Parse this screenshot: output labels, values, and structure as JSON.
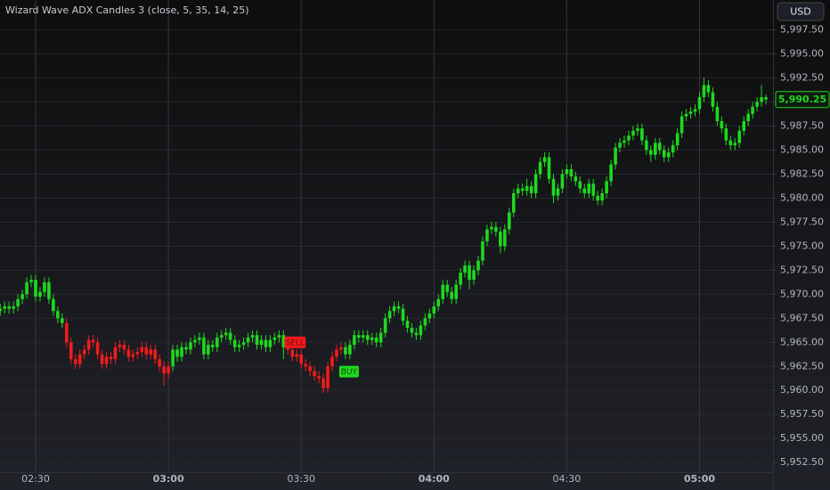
{
  "chart_data": {
    "type": "candlestick",
    "title": "Wizard Wave ADX Candles 3 (close, 5, 35, 14, 25)",
    "currency": "USD",
    "x": [
      "02:22",
      "02:23",
      "02:24",
      "02:25",
      "02:26",
      "02:27",
      "02:28",
      "02:29",
      "02:30",
      "02:31",
      "02:32",
      "02:33",
      "02:34",
      "02:35",
      "02:36",
      "02:37",
      "02:38",
      "02:39",
      "02:40",
      "02:41",
      "02:42",
      "02:43",
      "02:44",
      "02:45",
      "02:46",
      "02:47",
      "02:48",
      "02:49",
      "02:50",
      "02:51",
      "02:52",
      "02:53",
      "02:54",
      "02:55",
      "02:56",
      "02:57",
      "02:58",
      "02:59",
      "03:00",
      "03:01",
      "03:02",
      "03:03",
      "03:04",
      "03:05",
      "03:06",
      "03:07",
      "03:08",
      "03:09",
      "03:10",
      "03:11",
      "03:12",
      "03:13",
      "03:14",
      "03:15",
      "03:16",
      "03:17",
      "03:18",
      "03:19",
      "03:20",
      "03:21",
      "03:22",
      "03:23",
      "03:24",
      "03:25",
      "03:26",
      "03:27",
      "03:28",
      "03:29",
      "03:30",
      "03:31",
      "03:32",
      "03:33",
      "03:34",
      "03:35",
      "03:36",
      "03:37",
      "03:38",
      "03:39",
      "03:40",
      "03:41",
      "03:42",
      "03:43",
      "03:44",
      "03:45",
      "03:46",
      "03:47",
      "03:48",
      "03:49",
      "03:50",
      "03:51",
      "03:52",
      "03:53",
      "03:54",
      "03:55",
      "03:56",
      "03:57",
      "03:58",
      "03:59",
      "04:00",
      "04:01",
      "04:02",
      "04:03",
      "04:04",
      "04:05",
      "04:06",
      "04:07",
      "04:08",
      "04:09",
      "04:10",
      "04:11",
      "04:12",
      "04:13",
      "04:14",
      "04:15",
      "04:16",
      "04:17",
      "04:18",
      "04:19",
      "04:20",
      "04:21",
      "04:22",
      "04:23",
      "04:24",
      "04:25",
      "04:26",
      "04:27",
      "04:28",
      "04:29",
      "04:30",
      "04:31",
      "04:32",
      "04:33",
      "04:34",
      "04:35",
      "04:36",
      "04:37",
      "04:38",
      "04:39",
      "04:40",
      "04:41",
      "04:42",
      "04:43",
      "04:44",
      "04:45",
      "04:46",
      "04:47",
      "04:48",
      "04:49",
      "04:50",
      "04:51",
      "04:52",
      "04:53",
      "04:54",
      "04:55",
      "04:56",
      "04:57",
      "04:58",
      "04:59",
      "05:00",
      "05:01",
      "05:02",
      "05:03",
      "05:04",
      "05:05",
      "05:06",
      "05:07",
      "05:08",
      "05:09",
      "05:10",
      "05:11",
      "05:12",
      "05:13",
      "05:14",
      "05:15"
    ],
    "open": [
      5968.25,
      5968.5,
      5968.75,
      5968.5,
      5968.75,
      5969.5,
      5970,
      5971.25,
      5971.5,
      5969.75,
      5970.25,
      5971.25,
      5969.5,
      5968.25,
      5967.5,
      5967,
      5965,
      5963.25,
      5962.75,
      5963.75,
      5964.25,
      5965.25,
      5965,
      5963.75,
      5962.75,
      5963.5,
      5963.25,
      5964.5,
      5964.75,
      5964.25,
      5963.5,
      5963.75,
      5964,
      5964.5,
      5963.75,
      5964.25,
      5963.25,
      5962.5,
      5961.75,
      5962.5,
      5964.25,
      5963.5,
      5964.5,
      5964.25,
      5965,
      5965.25,
      5965.5,
      5963.75,
      5964.75,
      5964.5,
      5965.5,
      5965.75,
      5966,
      5965.25,
      5964.5,
      5964.75,
      5965,
      5965.5,
      5965.75,
      5964.75,
      5965.25,
      5964.5,
      5965.25,
      5965.5,
      5965.75,
      5964.5,
      5964.25,
      5963.5,
      5963.75,
      5962.75,
      5962.5,
      5962,
      5961.5,
      5961.25,
      5960.25,
      5962.5,
      5963.5,
      5964.25,
      5964.5,
      5963.75,
      5964.75,
      5965.75,
      5965.5,
      5965.75,
      5965.25,
      5965.5,
      5965,
      5966,
      5967.5,
      5968.25,
      5968.75,
      5968.5,
      5967.25,
      5966.5,
      5966,
      5965.75,
      5966.75,
      5967.5,
      5968,
      5968.75,
      5969.5,
      5971,
      5970.25,
      5969.5,
      5971,
      5972.25,
      5973,
      5971.5,
      5972.5,
      5973.5,
      5975.5,
      5976.75,
      5977,
      5976.5,
      5975,
      5976.75,
      5978.5,
      5980.5,
      5981,
      5980.75,
      5981.25,
      5980.5,
      5982.5,
      5983.75,
      5984.25,
      5982,
      5980.25,
      5981,
      5982.5,
      5983,
      5982.25,
      5981.75,
      5981,
      5980.5,
      5981.5,
      5980.25,
      5979.75,
      5980.5,
      5981.75,
      5983.5,
      5985.25,
      5985.75,
      5986,
      5986.5,
      5987,
      5987.25,
      5986,
      5985,
      5984.5,
      5985.75,
      5985,
      5984.25,
      5984.75,
      5985.5,
      5986.75,
      5988.5,
      5988.75,
      5989,
      5989.25,
      5990.5,
      5991.75,
      5991,
      5989.5,
      5988,
      5987.25,
      5986,
      5985.5,
      5985.75,
      5987,
      5988,
      5988.75,
      5989.5,
      5990,
      5990.5
    ],
    "high": [
      5969,
      5969.25,
      5969.25,
      5969.25,
      5970,
      5970.5,
      5971.75,
      5972,
      5972,
      5970.75,
      5971.75,
      5971.75,
      5970,
      5968.75,
      5968,
      5967.5,
      5965.5,
      5963.75,
      5964.25,
      5964.75,
      5965.75,
      5965.75,
      5965.5,
      5964.25,
      5964,
      5964,
      5965,
      5965.25,
      5965.25,
      5964.75,
      5964.25,
      5964.5,
      5965,
      5965,
      5964.75,
      5964.75,
      5963.75,
      5963,
      5963,
      5964.75,
      5964.75,
      5965,
      5965,
      5965.5,
      5965.75,
      5966,
      5966,
      5965.25,
      5965.25,
      5966,
      5966.25,
      5966.5,
      5966.5,
      5965.75,
      5965.25,
      5965.5,
      5966,
      5966.25,
      5966.25,
      5965.75,
      5965.75,
      5965.75,
      5966,
      5966.25,
      5966.25,
      5965,
      5964.75,
      5964.25,
      5964.25,
      5963.25,
      5963,
      5962.5,
      5962,
      5961.75,
      5963,
      5964,
      5964.75,
      5965,
      5965,
      5965.25,
      5966.25,
      5966.25,
      5966.25,
      5966.25,
      5966,
      5966,
      5966.5,
      5968,
      5968.75,
      5969.25,
      5969.25,
      5969,
      5967.75,
      5967,
      5966.5,
      5967.25,
      5968,
      5968.5,
      5969.25,
      5970,
      5971.5,
      5971.5,
      5970.75,
      5971.5,
      5972.75,
      5973.5,
      5973.5,
      5973,
      5974,
      5976,
      5977.25,
      5977.5,
      5977.5,
      5977,
      5977.25,
      5979,
      5981,
      5981.5,
      5981.5,
      5982,
      5981.75,
      5983,
      5984.25,
      5984.75,
      5984.75,
      5982.5,
      5981.5,
      5983,
      5983.5,
      5983.5,
      5982.75,
      5982.25,
      5981.5,
      5982,
      5982,
      5980.75,
      5981,
      5982.25,
      5984,
      5985.75,
      5986.25,
      5986.5,
      5987,
      5987.5,
      5987.75,
      5987.75,
      5986.5,
      5985.5,
      5986.25,
      5986.25,
      5985.5,
      5985.25,
      5986,
      5987.25,
      5989,
      5989.25,
      5989.5,
      5989.75,
      5991,
      5992.5,
      5992.25,
      5991.5,
      5990,
      5988.5,
      5987.75,
      5986.5,
      5986.25,
      5987.5,
      5988.5,
      5989.25,
      5990,
      5990.5,
      5991.75,
      5990.75
    ],
    "low": [
      5967.75,
      5968,
      5968,
      5968,
      5968.25,
      5969,
      5969.5,
      5970.75,
      5969.25,
      5969.25,
      5969.75,
      5969,
      5967.75,
      5967,
      5966.5,
      5964.5,
      5962.75,
      5962.25,
      5962.25,
      5963.25,
      5963.75,
      5964.5,
      5963.25,
      5962.25,
      5962.25,
      5962.75,
      5962.75,
      5964,
      5963.75,
      5963,
      5963,
      5963.25,
      5963.5,
      5963.25,
      5963.25,
      5962.75,
      5962,
      5960.5,
      5961.25,
      5962,
      5963,
      5963,
      5963.75,
      5963.75,
      5964.5,
      5964.75,
      5963.25,
      5963.25,
      5964,
      5964,
      5965,
      5965.25,
      5964.75,
      5964,
      5964,
      5964.25,
      5964.5,
      5965,
      5964.25,
      5964.25,
      5964,
      5964,
      5964.75,
      5965,
      5963.25,
      5963.75,
      5963,
      5963,
      5962.25,
      5962,
      5961.5,
      5961,
      5960.75,
      5959.75,
      5959.75,
      5962,
      5963,
      5963.75,
      5963.25,
      5963.25,
      5964.25,
      5965,
      5965,
      5964.75,
      5964.75,
      5964.5,
      5964.5,
      5965.5,
      5967,
      5967.75,
      5968,
      5966.75,
      5966,
      5965.5,
      5965.25,
      5965.25,
      5966.25,
      5967,
      5967.5,
      5968.25,
      5969,
      5969.75,
      5969,
      5969,
      5970.5,
      5971.75,
      5970.5,
      5971,
      5972,
      5973,
      5975,
      5976.25,
      5976,
      5974.25,
      5974.5,
      5976.25,
      5978,
      5980,
      5980.25,
      5980.25,
      5980,
      5980,
      5982,
      5983.25,
      5981.5,
      5979.5,
      5979.75,
      5980.5,
      5982,
      5981.75,
      5981.25,
      5980.5,
      5980,
      5980,
      5979.75,
      5979.25,
      5979.25,
      5980,
      5981.25,
      5983,
      5984.75,
      5985.25,
      5985.5,
      5986,
      5986.5,
      5985.5,
      5984.5,
      5983.75,
      5984,
      5984.5,
      5983.75,
      5983.75,
      5984.25,
      5985,
      5986.25,
      5988,
      5988.25,
      5988.5,
      5988.75,
      5990,
      5990.5,
      5989,
      5987.5,
      5986.75,
      5985.5,
      5985,
      5985,
      5985.25,
      5986.5,
      5987.5,
      5988.25,
      5989,
      5989.5,
      5989.75
    ],
    "close": [
      5968.5,
      5968.75,
      5968.5,
      5968.75,
      5969.5,
      5970,
      5971.25,
      5971.5,
      5969.75,
      5970.25,
      5971.25,
      5969.5,
      5968.25,
      5967.5,
      5967,
      5965,
      5963.25,
      5962.75,
      5963.75,
      5964.25,
      5965.25,
      5965,
      5963.75,
      5962.75,
      5963.5,
      5963.25,
      5964.5,
      5964.75,
      5964.25,
      5963.5,
      5963.75,
      5964,
      5964.5,
      5963.75,
      5964.25,
      5963.25,
      5962.5,
      5961.75,
      5962.5,
      5964.25,
      5963.5,
      5964.5,
      5964.25,
      5965,
      5965.25,
      5965.5,
      5963.75,
      5964.75,
      5964.5,
      5965.5,
      5965.75,
      5966,
      5965.25,
      5964.5,
      5964.75,
      5965,
      5965.5,
      5965.75,
      5964.75,
      5965.25,
      5964.5,
      5965.25,
      5965.5,
      5965.75,
      5964.5,
      5964.25,
      5963.5,
      5963.75,
      5962.75,
      5962.5,
      5962,
      5961.5,
      5961.25,
      5960.25,
      5962.5,
      5963.5,
      5964.25,
      5964.5,
      5963.75,
      5964.75,
      5965.75,
      5965.5,
      5965.75,
      5965.25,
      5965.5,
      5965,
      5966,
      5967.5,
      5968.25,
      5968.75,
      5968.5,
      5967.25,
      5966.5,
      5966,
      5965.75,
      5966.75,
      5967.5,
      5968,
      5968.75,
      5969.5,
      5971,
      5970.25,
      5969.5,
      5971,
      5972.25,
      5973,
      5971.5,
      5972.5,
      5973.5,
      5975.5,
      5976.75,
      5977,
      5976.5,
      5975,
      5976.75,
      5978.5,
      5980.5,
      5981,
      5980.75,
      5981.25,
      5980.5,
      5982.5,
      5983.75,
      5984.25,
      5982,
      5980.25,
      5981,
      5982.5,
      5983,
      5982.25,
      5981.75,
      5981,
      5980.5,
      5981.5,
      5980.25,
      5979.75,
      5980.5,
      5981.75,
      5983.5,
      5985.25,
      5985.75,
      5986,
      5986.5,
      5987,
      5987.25,
      5986,
      5985,
      5984.5,
      5985.75,
      5985,
      5984.25,
      5984.75,
      5985.5,
      5986.75,
      5988.5,
      5988.75,
      5989,
      5989.25,
      5990.5,
      5991.75,
      5991,
      5989.5,
      5988,
      5987.25,
      5986,
      5985.5,
      5985.75,
      5987,
      5988,
      5988.75,
      5989.5,
      5990,
      5990.5,
      5990.25
    ],
    "candle_colors": [
      "#1fd81f",
      "#1fd81f",
      "#1fd81f",
      "#1fd81f",
      "#1fd81f",
      "#1fd81f",
      "#1fd81f",
      "#1fd81f",
      "#1fd81f",
      "#1fd81f",
      "#1fd81f",
      "#1fd81f",
      "#1fd81f",
      "#1fd81f",
      "#1fd81f",
      "#f21b1b",
      "#f21b1b",
      "#f21b1b",
      "#f21b1b",
      "#f21b1b",
      "#f21b1b",
      "#f21b1b",
      "#f21b1b",
      "#f21b1b",
      "#f21b1b",
      "#f21b1b",
      "#f21b1b",
      "#f21b1b",
      "#f21b1b",
      "#f21b1b",
      "#f21b1b",
      "#f21b1b",
      "#f21b1b",
      "#f21b1b",
      "#f21b1b",
      "#f21b1b",
      "#f21b1b",
      "#f21b1b",
      "#f21b1b",
      "#1fd81f",
      "#1fd81f",
      "#1fd81f",
      "#1fd81f",
      "#1fd81f",
      "#1fd81f",
      "#1fd81f",
      "#1fd81f",
      "#1fd81f",
      "#1fd81f",
      "#1fd81f",
      "#1fd81f",
      "#1fd81f",
      "#1fd81f",
      "#1fd81f",
      "#1fd81f",
      "#1fd81f",
      "#1fd81f",
      "#1fd81f",
      "#1fd81f",
      "#1fd81f",
      "#1fd81f",
      "#1fd81f",
      "#1fd81f",
      "#1fd81f",
      "#1fd81f",
      "#f21b1b",
      "#f21b1b",
      "#f21b1b",
      "#f21b1b",
      "#f21b1b",
      "#f21b1b",
      "#f21b1b",
      "#f21b1b",
      "#f21b1b",
      "#f21b1b",
      "#f21b1b",
      "#f21b1b",
      "#f21b1b",
      "#1fd81f",
      "#1fd81f",
      "#1fd81f",
      "#1fd81f",
      "#1fd81f",
      "#1fd81f",
      "#1fd81f",
      "#1fd81f",
      "#1fd81f",
      "#1fd81f",
      "#1fd81f",
      "#1fd81f",
      "#1fd81f",
      "#1fd81f",
      "#1fd81f",
      "#1fd81f",
      "#1fd81f",
      "#1fd81f",
      "#1fd81f",
      "#1fd81f",
      "#1fd81f",
      "#1fd81f",
      "#1fd81f",
      "#1fd81f",
      "#1fd81f",
      "#1fd81f",
      "#1fd81f",
      "#1fd81f",
      "#1fd81f",
      "#1fd81f",
      "#1fd81f",
      "#1fd81f",
      "#1fd81f",
      "#1fd81f",
      "#1fd81f",
      "#1fd81f",
      "#1fd81f",
      "#1fd81f",
      "#1fd81f",
      "#1fd81f",
      "#1fd81f",
      "#1fd81f",
      "#1fd81f",
      "#1fd81f",
      "#1fd81f",
      "#1fd81f",
      "#1fd81f",
      "#1fd81f",
      "#1fd81f",
      "#1fd81f",
      "#1fd81f",
      "#1fd81f",
      "#1fd81f",
      "#1fd81f",
      "#1fd81f",
      "#1fd81f",
      "#1fd81f",
      "#1fd81f",
      "#1fd81f",
      "#1fd81f",
      "#1fd81f",
      "#1fd81f",
      "#1fd81f",
      "#1fd81f",
      "#1fd81f",
      "#1fd81f",
      "#1fd81f",
      "#1fd81f",
      "#1fd81f",
      "#1fd81f",
      "#1fd81f",
      "#1fd81f",
      "#1fd81f",
      "#1fd81f",
      "#1fd81f",
      "#1fd81f",
      "#1fd81f",
      "#1fd81f",
      "#1fd81f",
      "#1fd81f",
      "#1fd81f",
      "#1fd81f",
      "#1fd81f",
      "#1fd81f",
      "#1fd81f",
      "#1fd81f",
      "#1fd81f",
      "#1fd81f",
      "#1fd81f",
      "#1fd81f",
      "#1fd81f",
      "#1fd81f",
      "#1fd81f",
      "#1fd81f",
      "#1fd81f",
      "#1fd81f"
    ],
    "annotations": [
      {
        "text": "SELL",
        "x": "03:27",
        "color": "#f21b1b"
      },
      {
        "text": "BUY",
        "x": "03:40",
        "color": "#1fd81f"
      }
    ],
    "last_price_label": "5,990.25",
    "ylim": [
      5951.5,
      6000.6
    ],
    "yticks": [
      {
        "value": 5952.5,
        "label": "5,952.50"
      },
      {
        "value": 5955,
        "label": "5,955.00"
      },
      {
        "value": 5957.5,
        "label": "5,957.50"
      },
      {
        "value": 5960,
        "label": "5,960.00"
      },
      {
        "value": 5962.5,
        "label": "5,962.50"
      },
      {
        "value": 5965,
        "label": "5,965.00"
      },
      {
        "value": 5967.5,
        "label": "5,967.50"
      },
      {
        "value": 5970,
        "label": "5,970.00"
      },
      {
        "value": 5972.5,
        "label": "5,972.50"
      },
      {
        "value": 5975,
        "label": "5,975.00"
      },
      {
        "value": 5977.5,
        "label": "5,977.50"
      },
      {
        "value": 5980,
        "label": "5,980.00"
      },
      {
        "value": 5982.5,
        "label": "5,982.50"
      },
      {
        "value": 5985,
        "label": "5,985.00"
      },
      {
        "value": 5987.5,
        "label": "5,987.50"
      },
      {
        "value": 5990,
        "label": "5,990.00"
      },
      {
        "value": 5992.5,
        "label": "5,992.50"
      },
      {
        "value": 5995,
        "label": "5,995.00"
      },
      {
        "value": 5997.5,
        "label": "5,997.50"
      }
    ],
    "xticks": [
      "02:30",
      "03:00",
      "03:30",
      "04:00",
      "04:30",
      "05:00"
    ],
    "grid": true
  }
}
